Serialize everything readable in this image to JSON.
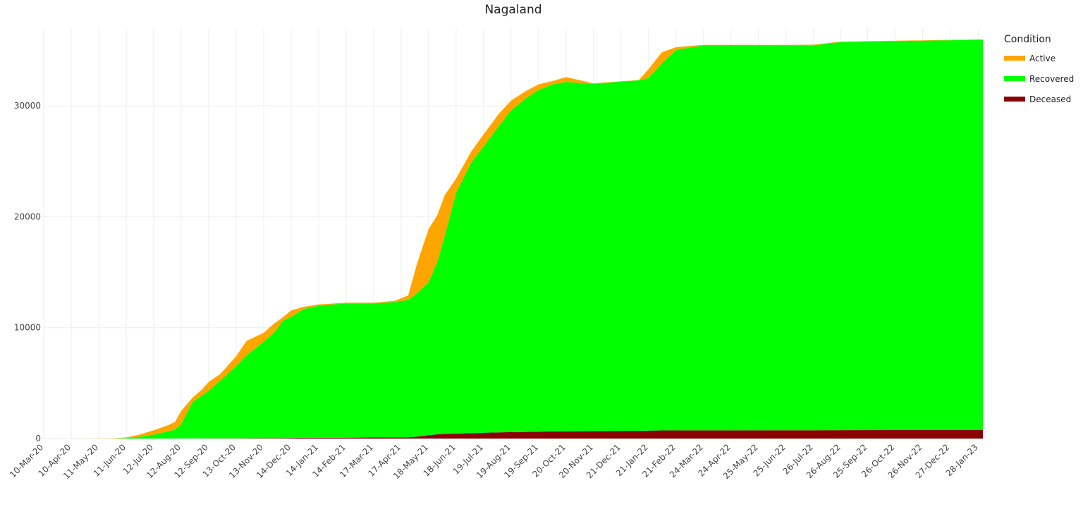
{
  "chart_data": {
    "type": "area",
    "stacked": true,
    "title": "Nagaland",
    "xlabel": "",
    "ylabel": "",
    "ylim": [
      0,
      37000
    ],
    "yticks": [
      0,
      10000,
      20000,
      30000
    ],
    "xlim": [
      "2020-03-10",
      "2023-02-02"
    ],
    "grid": true,
    "x_tick_labels": [
      "10-Mar-20",
      "10-Apr-20",
      "11-May-20",
      "11-Jun-20",
      "12-Jul-20",
      "12-Aug-20",
      "12-Sep-20",
      "13-Oct-20",
      "13-Nov-20",
      "14-Dec-20",
      "14-Jan-21",
      "14-Feb-21",
      "17-Mar-21",
      "17-Apr-21",
      "18-May-21",
      "18-Jun-21",
      "19-Jul-21",
      "19-Aug-21",
      "19-Sep-21",
      "20-Oct-21",
      "20-Nov-21",
      "21-Dec-21",
      "21-Jan-22",
      "21-Feb-22",
      "24-Mar-22",
      "24-Apr-22",
      "25-May-22",
      "25-Jun-22",
      "26-Jul-22",
      "26-Aug-22",
      "25-Sep-22",
      "26-Oct-22",
      "26-Nov-22",
      "27-Dec-22",
      "28-Jan-23"
    ],
    "x": [
      "2020-03-10",
      "2020-05-25",
      "2020-06-11",
      "2020-06-25",
      "2020-07-12",
      "2020-07-28",
      "2020-08-05",
      "2020-08-12",
      "2020-08-25",
      "2020-09-05",
      "2020-09-12",
      "2020-09-25",
      "2020-10-13",
      "2020-10-25",
      "2020-11-13",
      "2020-11-25",
      "2020-12-05",
      "2020-12-14",
      "2020-12-28",
      "2021-01-14",
      "2021-02-14",
      "2021-03-17",
      "2021-04-10",
      "2021-04-25",
      "2021-05-05",
      "2021-05-18",
      "2021-05-28",
      "2021-06-05",
      "2021-06-18",
      "2021-07-05",
      "2021-07-19",
      "2021-08-05",
      "2021-08-19",
      "2021-09-05",
      "2021-09-19",
      "2021-10-05",
      "2021-10-20",
      "2021-11-20",
      "2021-12-21",
      "2022-01-10",
      "2022-01-21",
      "2022-02-05",
      "2022-02-21",
      "2022-03-24",
      "2022-06-25",
      "2022-07-26",
      "2022-08-26",
      "2023-02-02"
    ],
    "legend": {
      "title": "Condition",
      "position": "top-right"
    },
    "series": [
      {
        "name": "Deceased",
        "color": "#8b0000",
        "values": [
          0,
          0,
          0,
          0,
          0,
          2,
          3,
          5,
          7,
          10,
          12,
          15,
          20,
          25,
          30,
          40,
          50,
          60,
          70,
          80,
          85,
          95,
          100,
          110,
          180,
          300,
          380,
          420,
          450,
          480,
          530,
          560,
          580,
          600,
          620,
          640,
          650,
          670,
          690,
          700,
          710,
          730,
          740,
          740,
          745,
          750,
          755,
          760
        ]
      },
      {
        "name": "Recovered",
        "color": "#00ff00",
        "values": [
          0,
          0,
          50,
          150,
          350,
          650,
          800,
          1300,
          3300,
          3900,
          4300,
          5200,
          6500,
          7500,
          8700,
          9500,
          10600,
          10900,
          11600,
          11900,
          12100,
          12100,
          12200,
          12400,
          12900,
          13800,
          15600,
          17800,
          21700,
          24400,
          25800,
          27600,
          29000,
          30100,
          30800,
          31300,
          31500,
          31300,
          31500,
          31600,
          31800,
          33100,
          34300,
          34700,
          34700,
          34700,
          35000,
          35200
        ]
      },
      {
        "name": "Active",
        "color": "#ffa500",
        "values": [
          2,
          10,
          50,
          180,
          400,
          550,
          700,
          1200,
          400,
          550,
          800,
          600,
          900,
          1300,
          800,
          850,
          300,
          600,
          200,
          120,
          60,
          50,
          120,
          400,
          2700,
          4800,
          4200,
          3700,
          1300,
          1000,
          1100,
          1100,
          900,
          650,
          520,
          300,
          450,
          50,
          20,
          20,
          800,
          1000,
          250,
          60,
          40,
          60,
          40,
          30
        ]
      }
    ]
  }
}
